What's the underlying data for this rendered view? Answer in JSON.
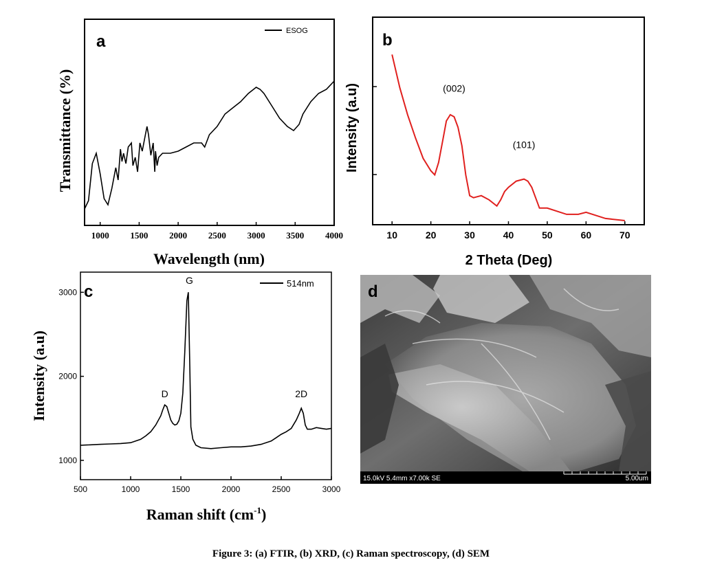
{
  "caption": "Figure 3: (a) FTIR, (b) XRD, (c) Raman spectroscopy, (d) SEM",
  "chart_data": [
    {
      "id": "a",
      "type": "line",
      "panel_label": "a",
      "xlabel": "Wavelength (nm)",
      "ylabel": "Transmittance (%)",
      "xlim": [
        800,
        4000
      ],
      "ylim": [
        0,
        100
      ],
      "x_ticks": [
        1000,
        1500,
        2000,
        2500,
        3000,
        3500,
        4000
      ],
      "legend": "top-right",
      "color": "#000000",
      "series": [
        {
          "name": "ESOG",
          "x": [
            800,
            850,
            900,
            950,
            1000,
            1050,
            1100,
            1150,
            1200,
            1230,
            1260,
            1280,
            1300,
            1330,
            1360,
            1400,
            1420,
            1450,
            1480,
            1510,
            1540,
            1570,
            1600,
            1620,
            1650,
            1680,
            1700,
            1710,
            1730,
            1750,
            1800,
            1900,
            2000,
            2100,
            2200,
            2300,
            2340,
            2400,
            2500,
            2600,
            2700,
            2800,
            2900,
            3000,
            3050,
            3100,
            3200,
            3300,
            3400,
            3480,
            3550,
            3600,
            3700,
            3800,
            3900,
            4000
          ],
          "y": [
            8,
            12,
            30,
            35,
            25,
            13,
            10,
            18,
            28,
            22,
            37,
            31,
            35,
            30,
            38,
            40,
            29,
            33,
            26,
            40,
            36,
            42,
            48,
            44,
            34,
            40,
            26,
            36,
            29,
            33,
            35,
            35,
            36,
            38,
            40,
            40,
            38,
            44,
            48,
            54,
            57,
            60,
            64,
            67,
            66,
            64,
            58,
            52,
            48,
            46,
            49,
            54,
            60,
            64,
            66,
            70
          ]
        }
      ]
    },
    {
      "id": "b",
      "type": "line",
      "panel_label": "b",
      "xlabel": "2 Theta (Deg)",
      "ylabel": "Intensity (a.u)",
      "xlim": [
        5,
        75
      ],
      "ylim": [
        0,
        100
      ],
      "x_ticks": [
        10,
        20,
        30,
        40,
        50,
        60,
        70
      ],
      "color": "#e0201e",
      "annotations": [
        {
          "text": "(002)",
          "x": 26,
          "y": 64
        },
        {
          "text": "(101)",
          "x": 44,
          "y": 37
        }
      ],
      "series": [
        {
          "x": [
            10,
            12,
            14,
            16,
            18,
            20,
            21,
            22,
            23,
            24,
            25,
            26,
            27,
            28,
            29,
            30,
            31,
            33,
            35,
            37,
            38,
            39,
            40,
            42,
            44,
            45,
            46,
            47,
            48,
            50,
            55,
            58,
            60,
            65,
            70
          ],
          "y": [
            82,
            66,
            53,
            42,
            32,
            26,
            24,
            30,
            40,
            50,
            53,
            52,
            47,
            38,
            24,
            14,
            13,
            14,
            12,
            9,
            12,
            16,
            18,
            21,
            22,
            21,
            18,
            13,
            8,
            8,
            5,
            5,
            6,
            3,
            2
          ]
        }
      ]
    },
    {
      "id": "c",
      "type": "line",
      "panel_label": "c",
      "xlabel": "Raman shift (cm",
      "xlabel_sup": "-1",
      "xlabel_tail": ")",
      "ylabel": "Intensity (a.u)",
      "xlim": [
        500,
        3000
      ],
      "ylim": [
        770,
        3240
      ],
      "x_ticks": [
        500,
        1000,
        1500,
        2000,
        2500,
        3000
      ],
      "y_ticks": [
        1000,
        2000,
        3000
      ],
      "legend": "top-right",
      "color": "#000000",
      "annotations": [
        {
          "text": "D",
          "x": 1340,
          "y": 1750
        },
        {
          "text": "G",
          "x": 1585,
          "y": 3100
        },
        {
          "text": "2D",
          "x": 2700,
          "y": 1750
        }
      ],
      "series": [
        {
          "name": "514nm",
          "x": [
            500,
            600,
            700,
            800,
            900,
            1000,
            1100,
            1150,
            1200,
            1250,
            1300,
            1320,
            1340,
            1360,
            1380,
            1400,
            1420,
            1440,
            1460,
            1480,
            1500,
            1520,
            1540,
            1560,
            1575,
            1590,
            1600,
            1620,
            1650,
            1700,
            1800,
            1900,
            2000,
            2100,
            2200,
            2300,
            2400,
            2450,
            2500,
            2550,
            2600,
            2650,
            2680,
            2700,
            2720,
            2740,
            2760,
            2800,
            2850,
            2900,
            2950,
            3000
          ],
          "y": [
            1180,
            1185,
            1190,
            1195,
            1200,
            1210,
            1250,
            1290,
            1340,
            1420,
            1530,
            1600,
            1660,
            1640,
            1560,
            1480,
            1440,
            1420,
            1430,
            1470,
            1560,
            1800,
            2300,
            2900,
            3000,
            2100,
            1400,
            1250,
            1180,
            1150,
            1140,
            1150,
            1160,
            1160,
            1170,
            1190,
            1230,
            1270,
            1310,
            1340,
            1380,
            1480,
            1560,
            1620,
            1560,
            1420,
            1370,
            1370,
            1390,
            1380,
            1370,
            1380
          ]
        }
      ]
    }
  ],
  "sem": {
    "panel_label": "d",
    "info_left": "15.0kV 5.4mm x7.00k SE",
    "info_right": "5.00um"
  }
}
